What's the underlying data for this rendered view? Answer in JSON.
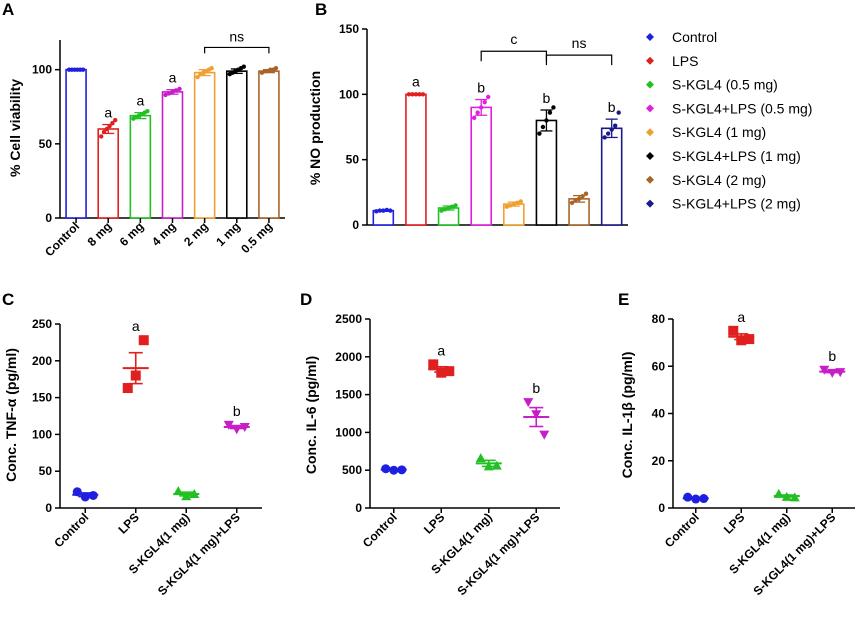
{
  "chart_data": [
    {
      "panel": "A",
      "type": "bar",
      "ylabel": "% Cell viability",
      "ylim": [
        0,
        120
      ],
      "yticks": [
        0,
        50,
        100
      ],
      "categories": [
        "Control",
        "8 mg",
        "6 mg",
        "4 mg",
        "2 mg",
        "1 mg",
        "0.5 mg"
      ],
      "values": [
        100,
        60,
        69,
        85,
        98,
        99,
        99
      ],
      "errors": [
        0,
        3,
        2,
        1.5,
        2,
        1.5,
        1
      ],
      "colors": [
        "#1f1fe0",
        "#e0201f",
        "#22c022",
        "#c81ec8",
        "#f0a030",
        "#000000",
        "#a86428"
      ],
      "points": [
        [
          100,
          100,
          100,
          100,
          100,
          100
        ],
        [
          55,
          58,
          60,
          62,
          64,
          66
        ],
        [
          67,
          68,
          69,
          70,
          71,
          72
        ],
        [
          83,
          84,
          85,
          86,
          87
        ],
        [
          95,
          97,
          98,
          99,
          100,
          101
        ],
        [
          97,
          98,
          99,
          100,
          101,
          102
        ],
        [
          98,
          99,
          99,
          100,
          100,
          101
        ]
      ],
      "significance": [
        "",
        "a",
        "a",
        "a",
        "",
        "",
        ""
      ],
      "brackets": [
        {
          "from": 4,
          "to": 6,
          "label": "ns"
        }
      ]
    },
    {
      "panel": "B",
      "type": "bar",
      "ylabel": "% NO production",
      "ylim": [
        0,
        150
      ],
      "yticks": [
        0,
        50,
        100,
        150
      ],
      "series_names": [
        "Control",
        "LPS",
        "S-KGL4 (0.5 mg)",
        "S-KGL4+LPS (0.5 mg)",
        "S-KGL4 (1 mg)",
        "S-KGL4+LPS (1 mg)",
        "S-KGL4 (2 mg)",
        "S-KGL4+LPS (2 mg)"
      ],
      "values": [
        11,
        100,
        13,
        90,
        16,
        80,
        20,
        74
      ],
      "errors": [
        0.5,
        0.5,
        1.5,
        6,
        1.5,
        8,
        2.5,
        7
      ],
      "colors": [
        "#1f1fe0",
        "#e0201f",
        "#22c022",
        "#e020e0",
        "#f0a030",
        "#000000",
        "#a86428",
        "#1a1a8a"
      ],
      "points": [
        [
          10.5,
          11,
          11,
          11.5,
          11
        ],
        [
          100,
          100,
          100,
          100,
          100
        ],
        [
          11,
          12,
          13,
          14,
          15
        ],
        [
          82,
          86,
          90,
          94,
          98
        ],
        [
          14,
          15,
          16,
          17,
          18
        ],
        [
          70,
          75,
          80,
          86,
          90
        ],
        [
          17,
          19,
          20,
          22,
          24
        ],
        [
          67,
          70,
          73,
          76,
          86
        ]
      ],
      "significance": [
        "",
        "a",
        "",
        "b",
        "",
        "b",
        "",
        "b"
      ],
      "brackets": [
        {
          "from": 3,
          "to": 5,
          "label": "c",
          "level": 133
        },
        {
          "from": 5,
          "to": 7,
          "label": "ns",
          "level": 130
        }
      ]
    },
    {
      "panel": "C",
      "type": "scatter",
      "ylabel": "Conc. TNF-α (pg/ml)",
      "ylim": [
        0,
        250
      ],
      "yticks": [
        0,
        50,
        100,
        150,
        200,
        250
      ],
      "categories": [
        "Control",
        "LPS",
        "S-KGL4(1 mg)",
        "S-KGL4(1 mg)+LPS"
      ],
      "markers": [
        "circle",
        "square",
        "triangle-up",
        "triangle-down"
      ],
      "colors": [
        "#1f1fe0",
        "#e0201f",
        "#22c022",
        "#c81ec8"
      ],
      "points": [
        [
          22,
          15,
          17
        ],
        [
          163,
          180,
          228
        ],
        [
          23,
          16,
          19
        ],
        [
          113,
          107,
          110
        ]
      ],
      "means": [
        18,
        190,
        19,
        110
      ],
      "errors": [
        2.5,
        21,
        2.5,
        2
      ],
      "significance": [
        "",
        "a",
        "",
        "b"
      ]
    },
    {
      "panel": "D",
      "type": "scatter",
      "ylabel": "Conc. IL-6 (pg/ml)",
      "ylim": [
        0,
        2500
      ],
      "yticks": [
        0,
        500,
        1000,
        1500,
        2000,
        2500
      ],
      "categories": [
        "Control",
        "LPS",
        "S-KGL4(1 mg)",
        "S-KGL4(1 mg)+LPS"
      ],
      "markers": [
        "circle",
        "square",
        "triangle",
        "triangle-down"
      ],
      "colors": [
        "#1f1fe0",
        "#e0201f",
        "#22c022",
        "#c81ec8"
      ],
      "points": [
        [
          520,
          500,
          505
        ],
        [
          1900,
          1790,
          1810
        ],
        [
          660,
          550,
          560
        ],
        [
          1400,
          1240,
          970
        ]
      ],
      "means": [
        508,
        1833,
        590,
        1203
      ],
      "errors": [
        8,
        35,
        40,
        125
      ],
      "significance": [
        "",
        "a",
        "",
        "b"
      ]
    },
    {
      "panel": "E",
      "type": "scatter",
      "ylabel": "Conc. IL-1β (pg/ml)",
      "ylim": [
        0,
        80
      ],
      "yticks": [
        0,
        20,
        40,
        60,
        80
      ],
      "categories": [
        "Control",
        "LPS",
        "S-KGL4(1 mg)",
        "S-KGL4(1 mg)+LPS"
      ],
      "markers": [
        "circle",
        "square",
        "triangle",
        "triangle-down"
      ],
      "colors": [
        "#1f1fe0",
        "#e0201f",
        "#22c022",
        "#c81ec8"
      ],
      "points": [
        [
          4.6,
          3.8,
          4.0
        ],
        [
          75,
          71,
          71.5
        ],
        [
          6,
          4.7,
          4.5
        ],
        [
          58.5,
          57.2,
          57.5
        ]
      ],
      "means": [
        4.1,
        72.5,
        5.1,
        57.7
      ],
      "errors": [
        0.3,
        1.2,
        0.4,
        0.4
      ],
      "significance": [
        "",
        "a",
        "",
        "b"
      ]
    }
  ]
}
